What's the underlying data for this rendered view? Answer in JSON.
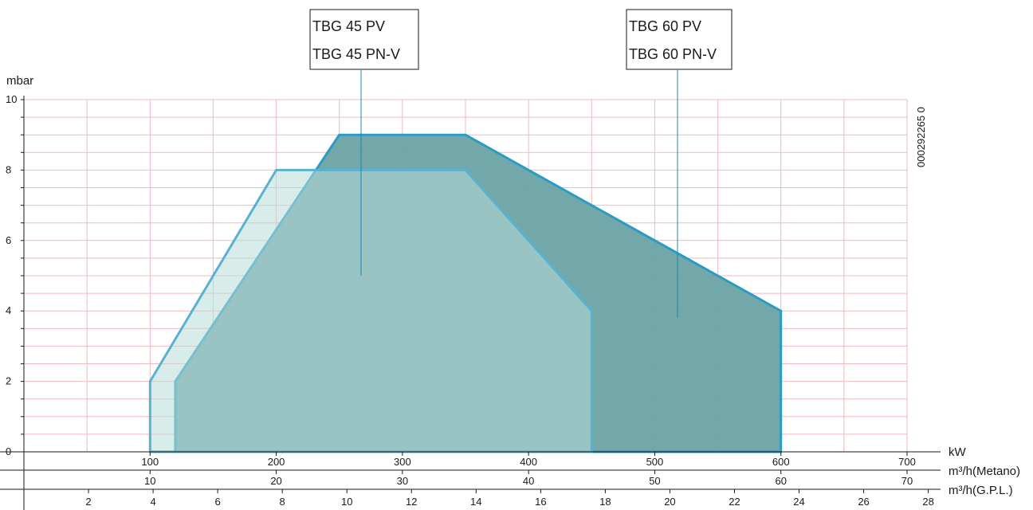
{
  "chart_data": {
    "type": "area",
    "y_axis": {
      "label": "mbar",
      "range": [
        0,
        10
      ],
      "major_ticks": [
        0,
        2,
        4,
        6,
        8,
        10
      ],
      "minor_step": 0.5
    },
    "x_axis_kw": {
      "label": "kW",
      "range": [
        0,
        700
      ],
      "ticks": [
        100,
        200,
        300,
        400,
        500,
        600,
        700
      ],
      "grid_step": 50
    },
    "x_axis_metano": {
      "label": "m³/h(Metano)",
      "ticks": [
        10,
        20,
        30,
        40,
        50,
        60,
        70
      ]
    },
    "x_axis_gpl": {
      "label": "m³/h(G.P.L.)",
      "ticks": [
        2,
        4,
        6,
        8,
        10,
        12,
        14,
        16,
        18,
        20,
        22,
        24,
        26,
        28
      ]
    },
    "series": [
      {
        "name": "TBG 60 PV / TBG 60 PN-V",
        "line1": "TBG 60 PV",
        "line2": "TBG 60 PN-V",
        "color": "#6aa3a5",
        "stroke": "#2a9cc4",
        "points": [
          [
            120,
            0
          ],
          [
            120,
            2
          ],
          [
            250,
            9
          ],
          [
            350,
            9
          ],
          [
            600,
            4
          ],
          [
            600,
            0
          ]
        ]
      },
      {
        "name": "TBG 45 PV / TBG 45 PN-V",
        "line1": "TBG 45 PV",
        "line2": "TBG 45 PN-V",
        "color": "#b8dcd8",
        "stroke": "#5ab2d0",
        "points": [
          [
            100,
            0
          ],
          [
            100,
            2
          ],
          [
            200,
            8
          ],
          [
            350,
            8
          ],
          [
            450,
            4
          ],
          [
            450,
            0
          ]
        ]
      }
    ],
    "series_label_anchor": [
      {
        "x": 267,
        "y": 5
      },
      {
        "x": 520,
        "y": 3.8
      }
    ],
    "side_code": "000292265 0"
  }
}
